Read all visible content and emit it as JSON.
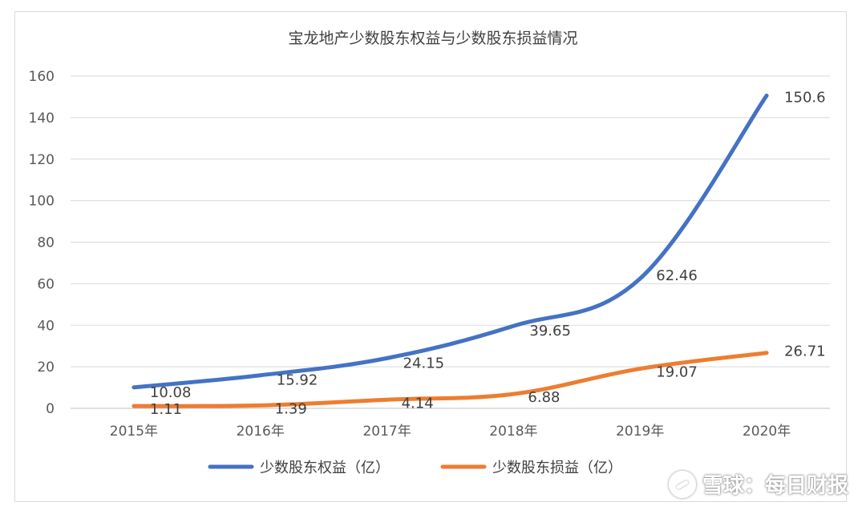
{
  "chart_data": {
    "type": "line",
    "title": "宝龙地产少数股东权益与少数股东损益情况",
    "categories": [
      "2015年",
      "2016年",
      "2017年",
      "2018年",
      "2019年",
      "2020年"
    ],
    "series": [
      {
        "name": "少数股东权益（亿）",
        "values": [
          10.08,
          15.92,
          24.15,
          39.65,
          62.46,
          150.6
        ],
        "labels": [
          "10.08",
          "15.92",
          "24.15",
          "39.65",
          "62.46",
          "150.6"
        ],
        "color": "#4472C4"
      },
      {
        "name": "少数股东损益（亿）",
        "values": [
          1.11,
          1.39,
          4.14,
          6.88,
          19.07,
          26.71
        ],
        "labels": [
          "1.11",
          "1.39",
          "4.14",
          "6.88",
          "19.07",
          "26.71"
        ],
        "color": "#ED7D31"
      }
    ],
    "ylim": [
      0,
      160
    ],
    "yticks": [
      0,
      20,
      40,
      60,
      80,
      100,
      120,
      140,
      160
    ],
    "grid": true,
    "legend": "bottom"
  },
  "watermark": {
    "text": "雪球：每日财报"
  }
}
